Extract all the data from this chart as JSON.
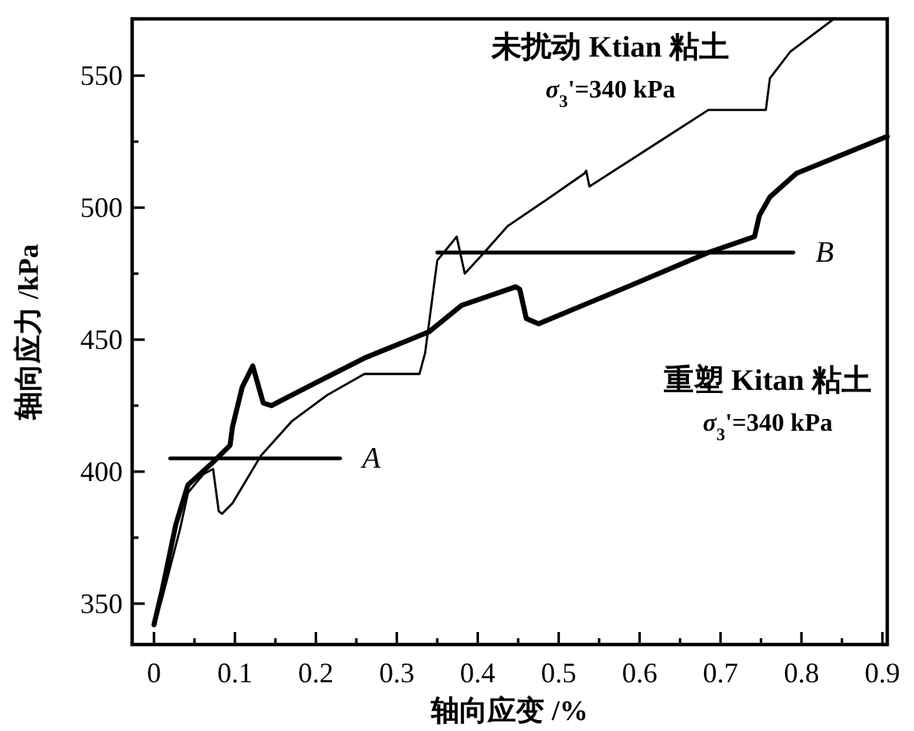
{
  "chart_data": {
    "type": "line",
    "xlabel": "轴向应变 /%",
    "ylabel": "轴向应力 /kPa",
    "xlim": [
      -0.027,
      0.906
    ],
    "ylim": [
      334.5,
      571.5
    ],
    "xticks": [
      0,
      {
        "value": 0.05,
        "label": null
      },
      0.1,
      {
        "value": 0.15,
        "label": null
      },
      0.2,
      {
        "value": 0.25,
        "label": null
      },
      0.3,
      {
        "value": 0.35,
        "label": null
      },
      0.4,
      {
        "value": 0.45,
        "label": null
      },
      0.5,
      {
        "value": 0.55,
        "label": null
      },
      0.6,
      {
        "value": 0.65,
        "label": null
      },
      0.7,
      {
        "value": 0.75,
        "label": null
      },
      0.8,
      {
        "value": 0.85,
        "label": null
      },
      0.9
    ],
    "yticks": [
      350,
      {
        "value": 375,
        "label": null
      },
      400,
      {
        "value": 425,
        "label": null
      },
      450,
      {
        "value": 475,
        "label": null
      },
      500,
      {
        "value": 525,
        "label": null
      },
      550
    ],
    "series": [
      {
        "name": "未扰动 Ktian 粘土",
        "color": "#000000",
        "x": [
          0,
          0.01,
          0.032,
          0.042,
          0.061,
          0.073,
          0.08,
          0.084,
          0.097,
          0.132,
          0.17,
          0.214,
          0.26,
          0.3,
          0.328,
          0.335,
          0.35,
          0.374,
          0.384,
          0.408,
          0.437,
          0.485,
          0.532,
          0.534,
          0.538,
          0.609,
          0.685,
          0.756,
          0.761,
          0.786,
          0.838
        ],
        "values": [
          342,
          352,
          378,
          392,
          399,
          401,
          385,
          384,
          388,
          406,
          419,
          429,
          437,
          437,
          437,
          445,
          480,
          489,
          475,
          483,
          493,
          503,
          513,
          514,
          508,
          522,
          537,
          537,
          549,
          559,
          571
        ]
      },
      {
        "name": "重塑 Kitan 粘土",
        "color": "#000000",
        "x": [
          0,
          0.01,
          0.027,
          0.042,
          0.071,
          0.094,
          0.097,
          0.109,
          0.122,
          0.135,
          0.145,
          0.202,
          0.26,
          0.34,
          0.38,
          0.447,
          0.452,
          0.46,
          0.475,
          0.585,
          0.685,
          0.742,
          0.748,
          0.761,
          0.794,
          0.85,
          0.906
        ],
        "values": [
          342,
          355,
          380,
          395,
          403,
          410,
          417,
          432,
          440,
          426,
          425,
          434,
          443,
          453,
          463,
          470,
          469,
          458,
          456,
          470,
          483,
          489,
          497,
          504,
          513,
          520,
          527
        ]
      },
      {
        "name": "A",
        "color": "#000000",
        "x": [
          0.02,
          0.23
        ],
        "values": [
          405,
          405
        ]
      },
      {
        "name": "B",
        "color": "#000000",
        "x": [
          0.35,
          0.79
        ],
        "values": [
          483,
          483
        ]
      }
    ],
    "annotations": [
      "*σ*$_{3}$'=340 kPa",
      "*σ*$_{3}$'=340 kPa"
    ]
  }
}
